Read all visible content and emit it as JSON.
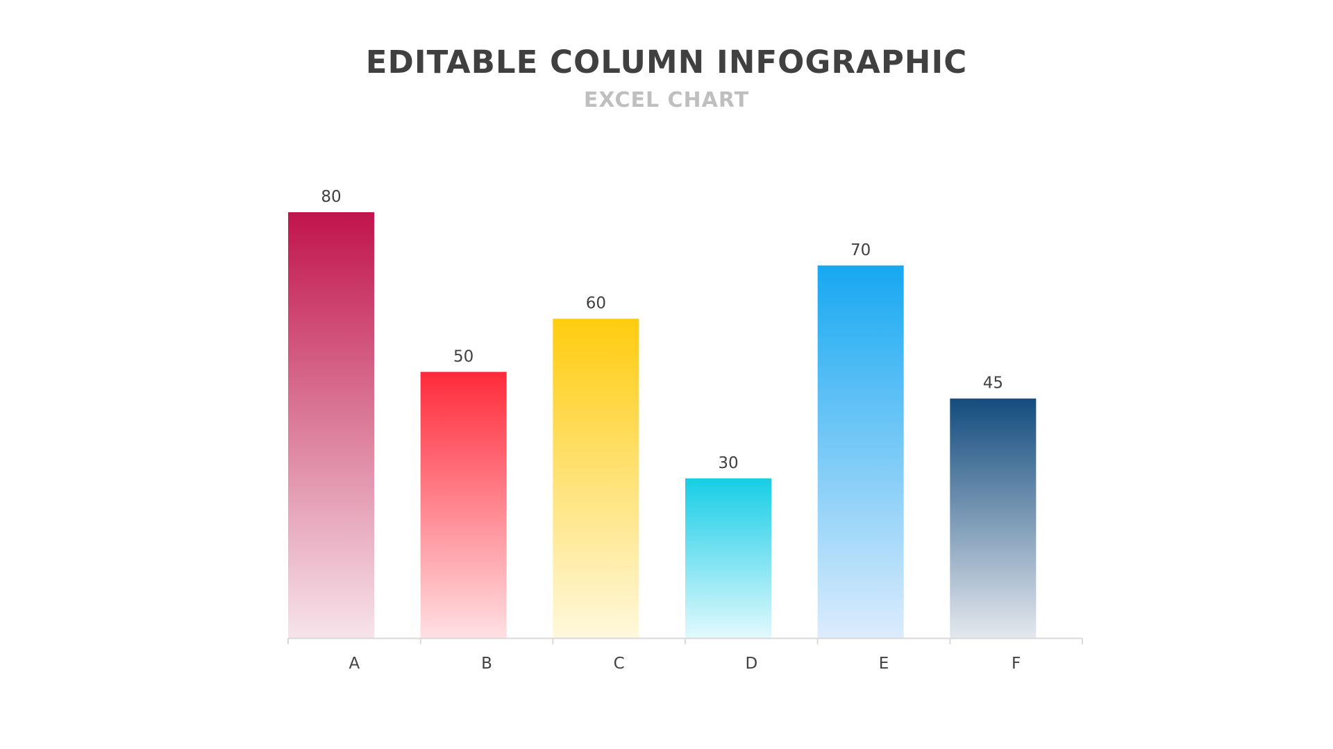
{
  "title": "EDITABLE COLUMN INFOGRAPHIC",
  "subtitle": "EXCEL CHART",
  "chart_data": {
    "type": "bar",
    "title": "EDITABLE COLUMN INFOGRAPHIC",
    "subtitle": "EXCEL CHART",
    "categories": [
      "A",
      "B",
      "C",
      "D",
      "E",
      "F"
    ],
    "values": [
      80,
      50,
      60,
      30,
      70,
      45
    ],
    "data_labels": [
      "80",
      "50",
      "60",
      "30",
      "70",
      "45"
    ],
    "xlabel": "",
    "ylabel": "",
    "ylim": [
      0,
      80
    ],
    "grid": false,
    "legend": "none",
    "colors": [
      {
        "top": "#c0144c",
        "bottom": "#f7e4ea"
      },
      {
        "top": "#ff2a3a",
        "bottom": "#ffe0e3"
      },
      {
        "top": "#ffcc0f",
        "bottom": "#fff8dd"
      },
      {
        "top": "#17cde6",
        "bottom": "#e2f9fd"
      },
      {
        "top": "#16a8f1",
        "bottom": "#dcecfd"
      },
      {
        "top": "#134c7e",
        "bottom": "#e4e8ee"
      }
    ],
    "axis_color": "#d9d9d9"
  }
}
